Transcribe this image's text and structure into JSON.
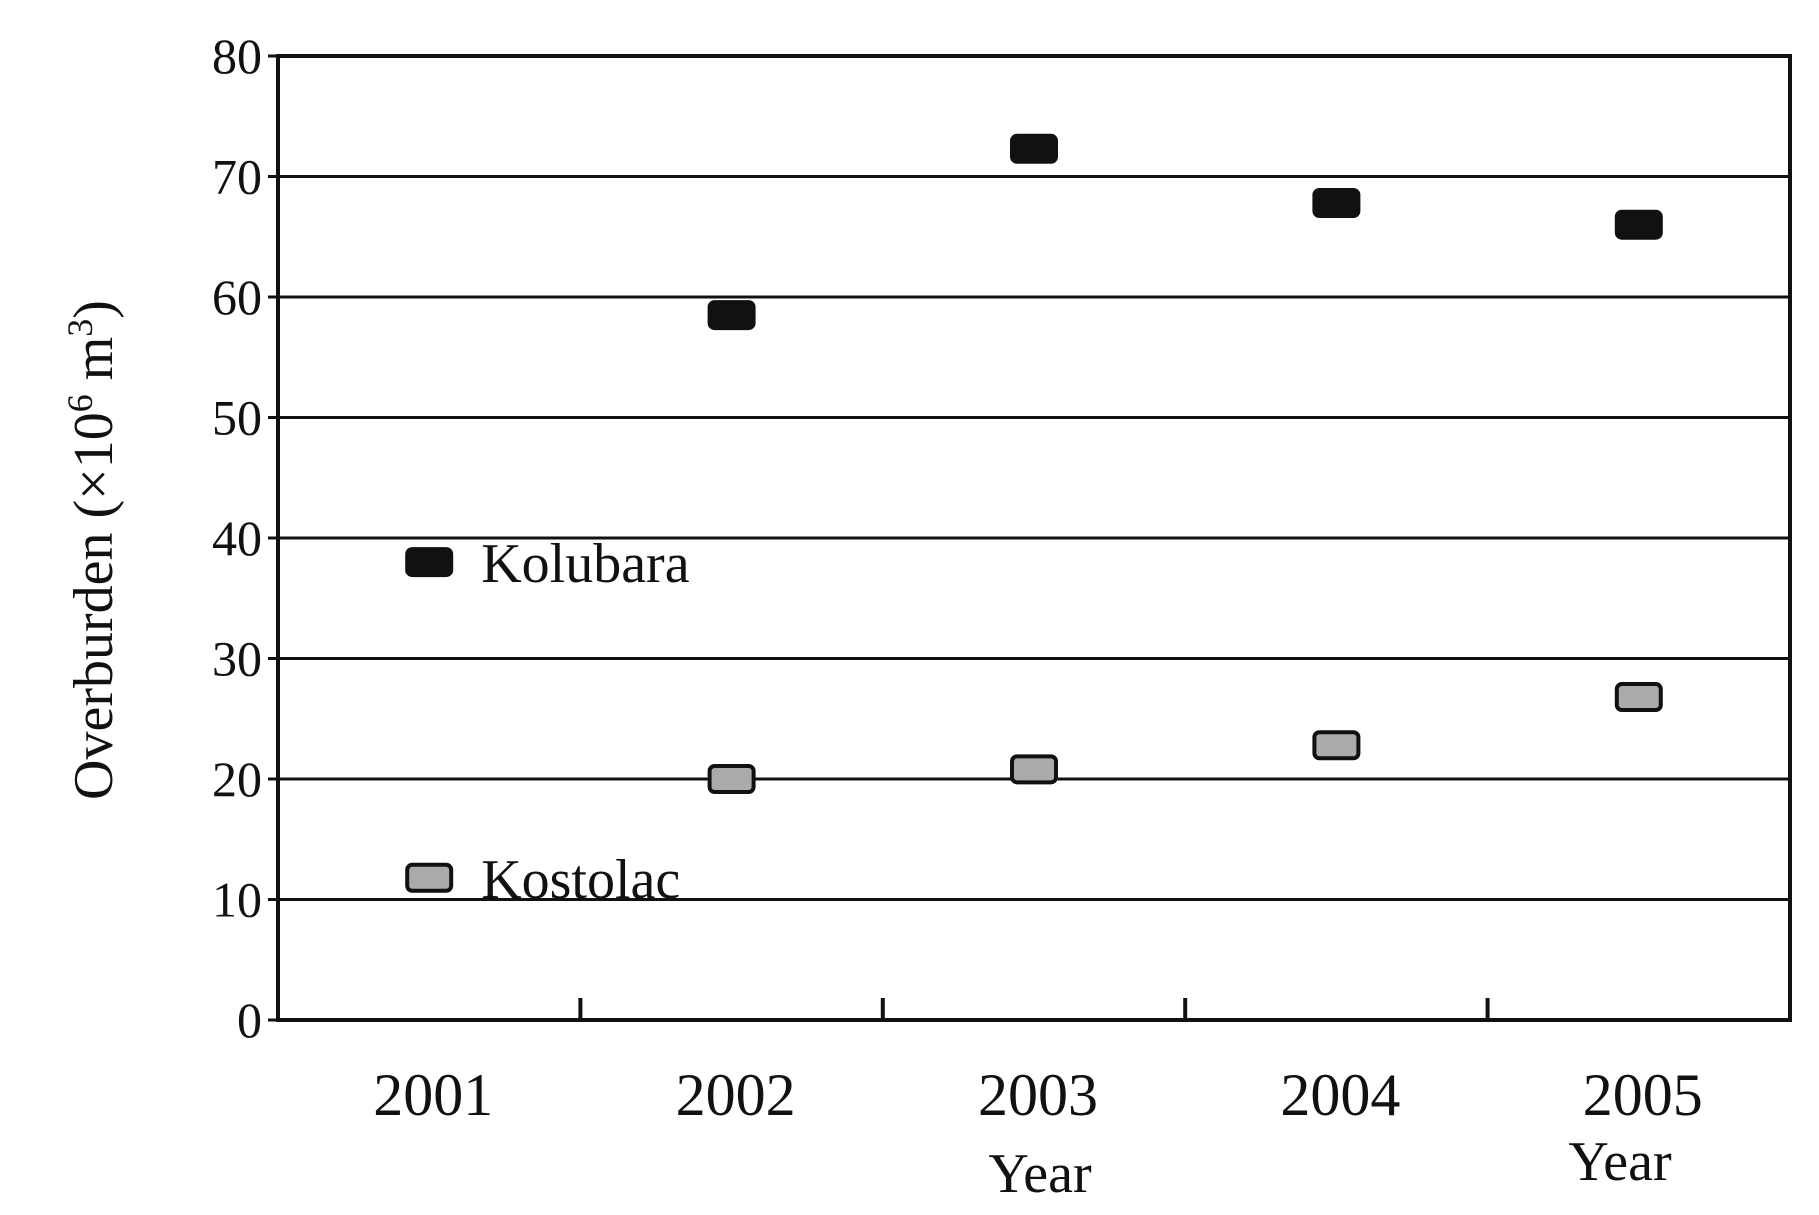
{
  "chart_data": {
    "type": "scatter",
    "categories": [
      "2001",
      "2002",
      "2003",
      "2004",
      "2005"
    ],
    "series": [
      {
        "name": "Kolubara",
        "values": [
          null,
          58.5,
          72.3,
          67.8,
          66.0
        ],
        "color": "#111111"
      },
      {
        "name": "Kostolac",
        "values": [
          null,
          20.0,
          20.8,
          22.8,
          26.8
        ],
        "color": "#aaaaaa"
      }
    ],
    "yticks": [
      "0",
      "10",
      "20",
      "30",
      "40",
      "50",
      "60",
      "70",
      "80"
    ],
    "ylim": [
      0,
      80
    ],
    "ylabel": {
      "prefix": "Overburden (×10",
      "exp1": "6",
      "mid": " m",
      "exp2": "3",
      "suffix": ")"
    },
    "xlabel": "Year",
    "xlabel_repeat": "Year",
    "grid": "horizontal",
    "legend": {
      "placement": "inside-left",
      "items": [
        {
          "label": "Kolubara",
          "value": 38
        },
        {
          "label": "Kostolac",
          "value": 11.8
        }
      ]
    },
    "title": ""
  }
}
